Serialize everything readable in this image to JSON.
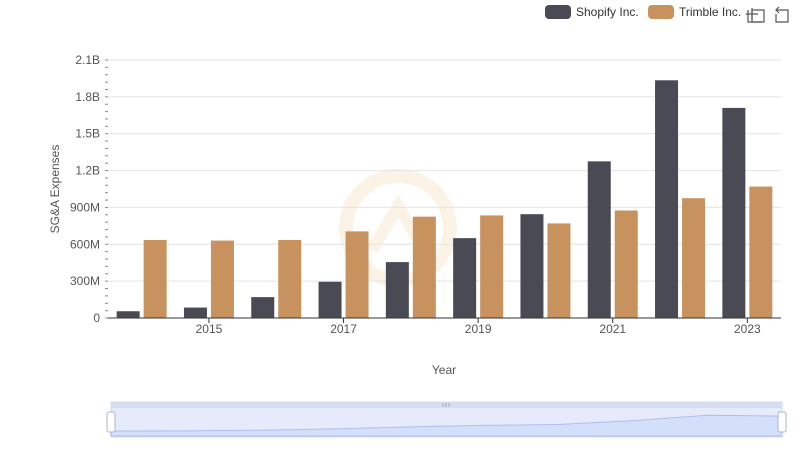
{
  "chart_data": {
    "type": "bar",
    "title": "",
    "xlabel": "Year",
    "ylabel": "SG&A Expenses",
    "ylim": [
      0,
      2100000000
    ],
    "y_ticks": [
      {
        "value": 0,
        "label": "0"
      },
      {
        "value": 300000000,
        "label": "300M"
      },
      {
        "value": 600000000,
        "label": "600M"
      },
      {
        "value": 900000000,
        "label": "900M"
      },
      {
        "value": 1200000000,
        "label": "1.2B"
      },
      {
        "value": 1500000000,
        "label": "1.5B"
      },
      {
        "value": 1800000000,
        "label": "1.8B"
      },
      {
        "value": 2100000000,
        "label": "2.1B"
      }
    ],
    "x_ticks": [
      {
        "value": 2015,
        "label": "2015"
      },
      {
        "value": 2017,
        "label": "2017"
      },
      {
        "value": 2019,
        "label": "2019"
      },
      {
        "value": 2021,
        "label": "2021"
      },
      {
        "value": 2023,
        "label": "2023"
      }
    ],
    "categories": [
      2014,
      2015,
      2016,
      2017,
      2018,
      2019,
      2020,
      2021,
      2022,
      2023
    ],
    "series": [
      {
        "name": "Shopify Inc.",
        "color": "#4a4a55",
        "values": [
          55000000,
          85000000,
          170000000,
          295000000,
          455000000,
          650000000,
          845000000,
          1275000000,
          1935000000,
          1710000000
        ]
      },
      {
        "name": "Trimble Inc.",
        "color": "#c8925e",
        "values": [
          635000000,
          630000000,
          635000000,
          705000000,
          825000000,
          835000000,
          770000000,
          875000000,
          975000000,
          1070000000
        ]
      }
    ],
    "legend": "top-right",
    "grid": true
  },
  "colors": {
    "grid": "#e2e4ea",
    "axis_text": "#555555",
    "slider_fill": "#dbe4fb",
    "slider_border": "#c5d1ee",
    "slider_line": "#9fb3e6"
  },
  "icons": [
    "zoom-select-icon",
    "reset-zoom-icon"
  ]
}
